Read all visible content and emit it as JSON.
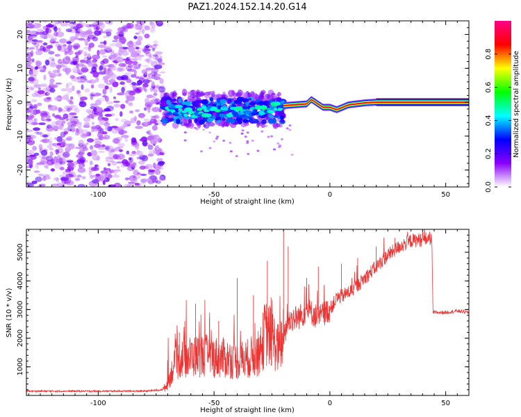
{
  "title": "PAZ1.2024.152.14.20.G14",
  "chart_data": [
    {
      "type": "heatmap",
      "xlabel": "Height of straight line (km)",
      "ylabel": "Frequency (Hz)",
      "xlim": [
        -131,
        60
      ],
      "ylim": [
        -25,
        24
      ],
      "xticks": [
        -100,
        -50,
        0,
        50
      ],
      "yticks": [
        -20,
        -10,
        0,
        10,
        20
      ],
      "xtick_labels": [
        "-100",
        "-50",
        "0",
        "50"
      ],
      "ytick_labels": [
        "-20",
        "-10",
        "0",
        "10",
        "20"
      ],
      "colorbar": {
        "label": "Normalized spectral amplitude",
        "range": [
          0,
          1
        ],
        "ticks": [
          0.0,
          0.2,
          0.4,
          0.6,
          0.8
        ],
        "tick_labels": [
          "0.0",
          "0.2",
          "0.4",
          "0.6",
          "0.8"
        ],
        "colormap": [
          "#ffffff",
          "#8a00ff",
          "#0000ff",
          "#00ffff",
          "#00ff00",
          "#ffff00",
          "#ff0000",
          "#ff0088"
        ]
      },
      "regions": [
        {
          "x_range": [
            -131,
            -72
          ],
          "y_range": [
            -25,
            24
          ],
          "amplitude": [
            0.05,
            0.18
          ],
          "pattern": "scattered noise"
        },
        {
          "x_range": [
            -72,
            -20
          ],
          "y_range": [
            -7,
            3
          ],
          "amplitude": [
            0.15,
            0.4
          ],
          "pattern": "turbulent signal band"
        },
        {
          "x_range": [
            -20,
            60
          ],
          "y_range": [
            -2,
            2
          ],
          "amplitude": [
            0.8,
            0.9
          ],
          "pattern": "narrow tone near 0 Hz"
        }
      ],
      "ridge": [
        {
          "x": -70,
          "y": -2.0
        },
        {
          "x": -60,
          "y": -3.0
        },
        {
          "x": -50,
          "y": -2.5
        },
        {
          "x": -40,
          "y": -3.0
        },
        {
          "x": -30,
          "y": -2.5
        },
        {
          "x": -20,
          "y": -1.0
        },
        {
          "x": -10,
          "y": -0.5
        },
        {
          "x": -8,
          "y": 0.8
        },
        {
          "x": -3,
          "y": -1.5
        },
        {
          "x": 0,
          "y": -1.5
        },
        {
          "x": 3,
          "y": -2.2
        },
        {
          "x": 8,
          "y": -0.8
        },
        {
          "x": 15,
          "y": -0.2
        },
        {
          "x": 20,
          "y": 0.0
        },
        {
          "x": 60,
          "y": 0.0
        }
      ]
    },
    {
      "type": "line",
      "xlabel": "Height of straight line (km)",
      "ylabel": "SNR (10 * v/v)",
      "xlim": [
        -131,
        60
      ],
      "ylim": [
        0,
        5800
      ],
      "xticks": [
        -100,
        -50,
        0,
        50
      ],
      "yticks": [
        1000,
        2000,
        3000,
        4000,
        5000
      ],
      "xtick_labels": [
        "-100",
        "-50",
        "0",
        "50"
      ],
      "ytick_labels": [
        "1000",
        "2000",
        "3000",
        "4000",
        "5000"
      ],
      "color": "#ee3333",
      "series": [
        {
          "x": [
            -131,
            -110,
            -90,
            -80,
            -72,
            -70,
            -68,
            -66,
            -64,
            -60,
            -55,
            -50,
            -45,
            -40,
            -35,
            -30,
            -28,
            -25,
            -22,
            -20,
            -18,
            -15,
            -12,
            -10,
            -8,
            -5,
            -2,
            0,
            3,
            6,
            10,
            15,
            20,
            25,
            30,
            35,
            40,
            44,
            44.5,
            50,
            55,
            60
          ],
          "y": [
            150,
            150,
            150,
            150,
            200,
            400,
            900,
            1200,
            1300,
            1350,
            1400,
            1350,
            1300,
            1200,
            1300,
            1500,
            2200,
            2000,
            1600,
            2000,
            2600,
            2700,
            2800,
            3000,
            2900,
            2700,
            2900,
            3000,
            3400,
            3500,
            3700,
            4100,
            4500,
            4900,
            5200,
            5400,
            5450,
            5500,
            2900,
            2900,
            2950,
            2900
          ]
        }
      ],
      "spikes": [
        {
          "x": -65,
          "y": 2200
        },
        {
          "x": -58,
          "y": 3200
        },
        {
          "x": -52,
          "y": 2700
        },
        {
          "x": -48,
          "y": 2600
        },
        {
          "x": -40,
          "y": 4100
        },
        {
          "x": -33,
          "y": 3500
        },
        {
          "x": -27,
          "y": 4700
        },
        {
          "x": -20,
          "y": 5800
        },
        {
          "x": -18,
          "y": 5200
        },
        {
          "x": -10,
          "y": 4100
        },
        {
          "x": -5,
          "y": 4500
        },
        {
          "x": 5,
          "y": 4600
        },
        {
          "x": 12,
          "y": 4800
        },
        {
          "x": 20,
          "y": 5200
        },
        {
          "x": 28,
          "y": 5500
        }
      ]
    }
  ]
}
